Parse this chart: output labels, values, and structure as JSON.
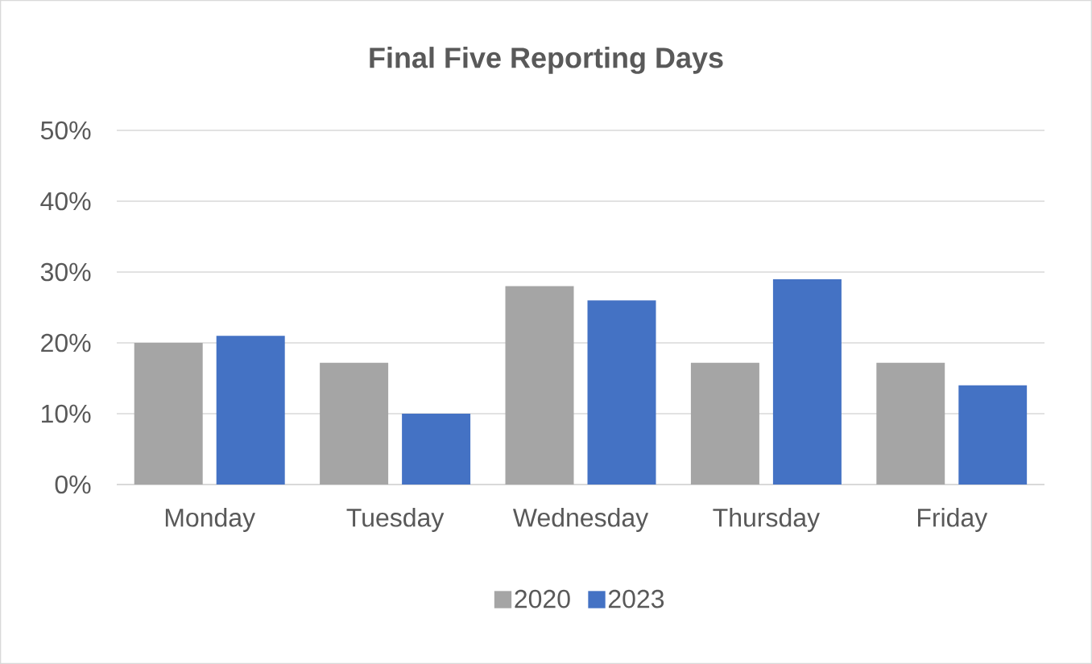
{
  "chart_data": {
    "type": "bar",
    "title": "Final Five Reporting Days",
    "categories": [
      "Monday",
      "Tuesday",
      "Wednesday",
      "Thursday",
      "Friday"
    ],
    "series": [
      {
        "name": "2020",
        "color": "#a5a5a5",
        "values": [
          20,
          17.2,
          28,
          17.2,
          17.2
        ]
      },
      {
        "name": "2023",
        "color": "#4472c4",
        "values": [
          21,
          10,
          26,
          29,
          14
        ]
      }
    ],
    "ylim": [
      0,
      50
    ],
    "yticks": [
      {
        "value": 0,
        "label": "0%"
      },
      {
        "value": 10,
        "label": "10%"
      },
      {
        "value": 20,
        "label": "20%"
      },
      {
        "value": 30,
        "label": "30%"
      },
      {
        "value": 40,
        "label": "40%"
      },
      {
        "value": 50,
        "label": "50%"
      }
    ],
    "grid": "y",
    "legend": "bottom"
  }
}
